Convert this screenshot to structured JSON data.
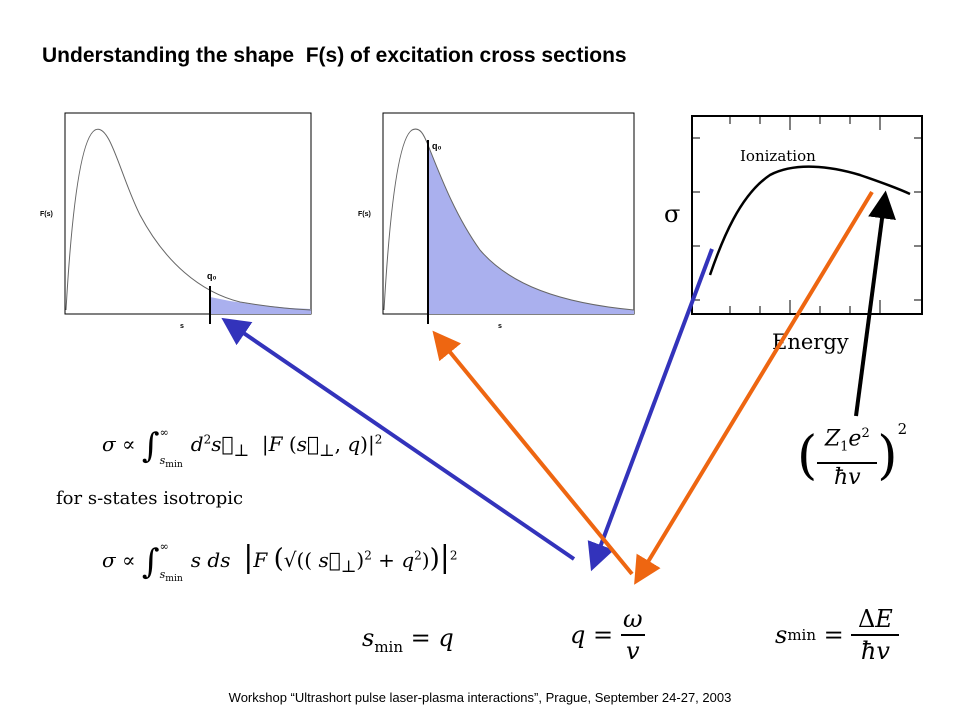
{
  "title": "Understanding the shape  F(s) of excitation cross sections",
  "footer": "Workshop “Ultrashort pulse laser-plasma interactions”, Prague, September 24-27, 2003",
  "plot_left": {
    "ylabel": "F(s)",
    "xlabel": "s",
    "marker": "q₀"
  },
  "plot_middle": {
    "ylabel": "F(s)",
    "xlabel": "s",
    "marker": "q₀"
  },
  "plot_right": {
    "ylabel": "σ",
    "xlabel": "Energy",
    "curve_label": "Ionization"
  },
  "isotropic_label": "for s-states isotropic",
  "colors": {
    "blue_arrow": "#3333bb",
    "orange_arrow": "#ee6611",
    "fill": "#aab0ee",
    "black_arrow": "#000000"
  }
}
